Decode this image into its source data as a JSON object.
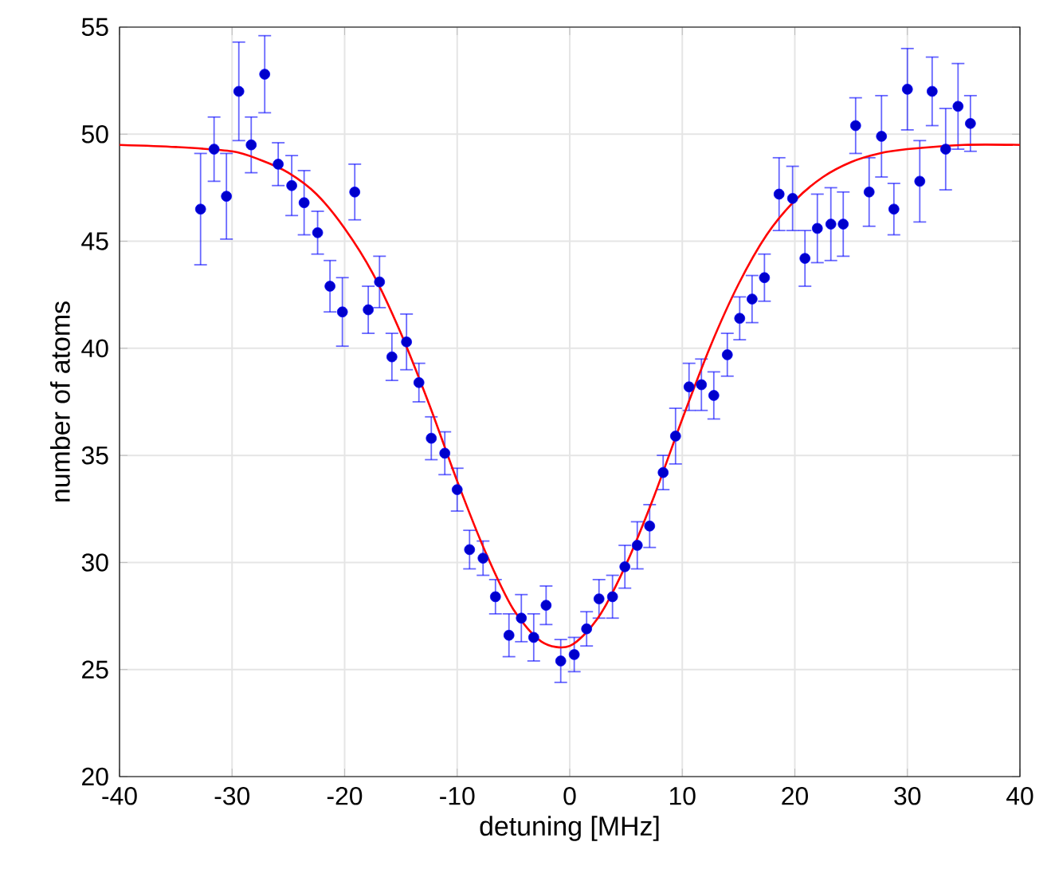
{
  "chart_data": {
    "type": "scatter",
    "xlabel": "detuning [MHz]",
    "ylabel": "number of atoms",
    "xlim": [
      -40,
      40
    ],
    "ylim": [
      20,
      55
    ],
    "xticks": [
      -40,
      -30,
      -20,
      -10,
      0,
      10,
      20,
      30,
      40
    ],
    "yticks": [
      20,
      25,
      30,
      35,
      40,
      45,
      50,
      55
    ],
    "grid": true,
    "series": [
      {
        "color": "#0000ff",
        "marker": "circle",
        "x": [
          -32.8,
          -31.6,
          -30.5,
          -29.4,
          -28.3,
          -27.1,
          -25.9,
          -24.7,
          -23.6,
          -22.4,
          -21.3,
          -20.2,
          -19.1,
          -17.9,
          -16.9,
          -15.8,
          -14.5,
          -13.4,
          -12.3,
          -11.1,
          -10.0,
          -8.9,
          -7.7,
          -6.6,
          -5.4,
          -4.3,
          -3.2,
          -2.1,
          -0.8,
          0.4,
          1.5,
          2.6,
          3.8,
          4.9,
          6.0,
          7.1,
          8.3,
          9.4,
          10.6,
          11.7,
          12.8,
          14.0,
          15.1,
          16.2,
          17.3,
          18.6,
          19.8,
          20.9,
          22.0,
          23.2,
          24.3,
          25.4,
          26.6,
          27.7,
          28.8,
          30.0,
          31.1,
          32.2,
          33.4,
          34.5,
          35.6
        ],
        "values": [
          46.5,
          49.3,
          47.1,
          52.0,
          49.5,
          52.8,
          48.6,
          47.6,
          46.8,
          45.4,
          42.9,
          41.7,
          47.3,
          41.8,
          43.1,
          39.6,
          40.3,
          38.4,
          35.8,
          35.1,
          33.4,
          30.6,
          30.2,
          28.4,
          26.6,
          27.4,
          26.5,
          28.0,
          25.4,
          25.7,
          26.9,
          28.3,
          28.4,
          29.8,
          30.8,
          31.7,
          34.2,
          35.9,
          38.2,
          38.3,
          37.8,
          39.7,
          41.4,
          42.3,
          43.3,
          47.2,
          47.0,
          44.2,
          45.6,
          45.8,
          45.8,
          50.4,
          47.3,
          49.9,
          46.5,
          52.1,
          47.8,
          52.0,
          49.3,
          51.3,
          50.5
        ],
        "errors": [
          2.6,
          1.5,
          2.0,
          2.3,
          1.3,
          1.8,
          1.0,
          1.4,
          1.5,
          1.0,
          1.2,
          1.6,
          1.3,
          1.1,
          1.2,
          1.1,
          1.3,
          0.9,
          1.0,
          1.0,
          1.0,
          0.9,
          0.8,
          0.8,
          1.0,
          1.1,
          1.1,
          0.9,
          1.0,
          0.8,
          0.8,
          0.9,
          1.0,
          1.0,
          1.1,
          1.0,
          0.8,
          1.3,
          1.1,
          1.2,
          1.1,
          1.0,
          1.0,
          1.1,
          1.1,
          1.7,
          1.5,
          1.3,
          1.6,
          1.7,
          1.5,
          1.3,
          1.6,
          1.9,
          1.2,
          1.9,
          1.9,
          1.6,
          1.9,
          2.0,
          1.3
        ]
      },
      {
        "type": "line",
        "color": "#ff0000",
        "marker": "none",
        "x": [
          -40,
          -35,
          -30,
          -27.5,
          -25,
          -22.5,
          -20,
          -17.5,
          -15,
          -12.5,
          -10,
          -7.5,
          -5,
          -2.5,
          0,
          2.5,
          5,
          7.5,
          10,
          12.5,
          15,
          17.5,
          20,
          22.5,
          25,
          27.5,
          30,
          35,
          40
        ],
        "values": [
          49.5,
          49.4,
          49.2,
          48.8,
          48.2,
          47.2,
          45.6,
          43.5,
          40.7,
          37.4,
          33.8,
          30.5,
          27.8,
          26.3,
          26.1,
          27.4,
          29.9,
          33.1,
          36.7,
          40.1,
          43.0,
          45.3,
          46.9,
          48.0,
          48.7,
          49.1,
          49.3,
          49.5,
          49.5
        ]
      }
    ]
  }
}
